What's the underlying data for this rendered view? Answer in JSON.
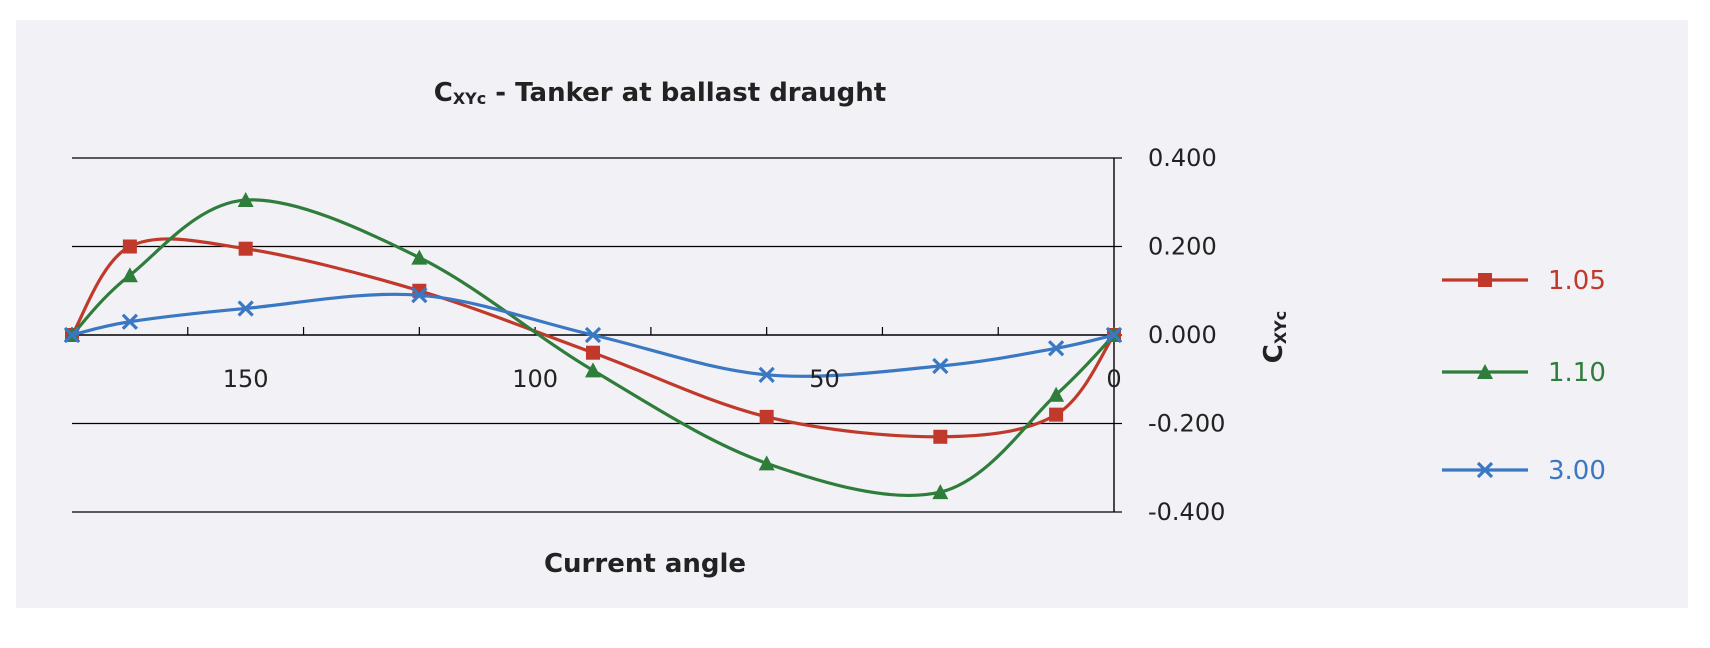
{
  "chart_data": {
    "type": "line",
    "title": {
      "main": "C",
      "sub": "XYc",
      "rest": " - Tanker at ballast draught"
    },
    "xlabel": "Current angle",
    "ylabel": {
      "main": "C",
      "sub": "XYc"
    },
    "xlim": [
      180,
      0
    ],
    "ylim": [
      -0.4,
      0.4
    ],
    "x_ticks": [
      150,
      100,
      50,
      0
    ],
    "y_ticks": [
      0.4,
      0.2,
      0.0,
      -0.2,
      -0.4
    ],
    "y_tick_labels": [
      "0.400",
      "0.200",
      "0.000",
      "-0.200",
      "-0.400"
    ],
    "grid": true,
    "legend_position": "right",
    "series": [
      {
        "name": "1.05",
        "color": "#c0392b",
        "marker": "square",
        "x": [
          180,
          170,
          150,
          120,
          90,
          60,
          30,
          10,
          0
        ],
        "y": [
          0.0,
          0.2,
          0.195,
          0.1,
          -0.04,
          -0.185,
          -0.23,
          -0.18,
          0.0
        ]
      },
      {
        "name": "1.10",
        "color": "#2e7d3a",
        "marker": "triangle",
        "x": [
          180,
          170,
          150,
          120,
          90,
          60,
          30,
          10,
          0
        ],
        "y": [
          0.0,
          0.135,
          0.305,
          0.175,
          -0.08,
          -0.29,
          -0.355,
          -0.135,
          0.0
        ]
      },
      {
        "name": "3.00",
        "color": "#3a78c3",
        "marker": "x",
        "x": [
          180,
          170,
          150,
          120,
          90,
          60,
          30,
          10,
          0
        ],
        "y": [
          0.0,
          0.03,
          0.06,
          0.09,
          0.0,
          -0.09,
          -0.07,
          -0.03,
          0.0
        ]
      }
    ]
  }
}
